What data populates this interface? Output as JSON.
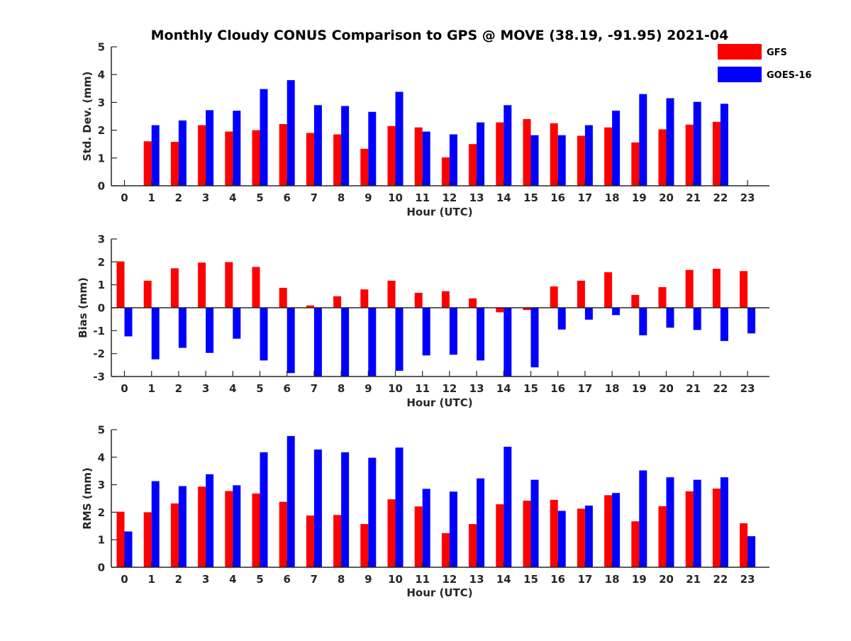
{
  "title": "Monthly Cloudy CONUS Comparison to GPS @ MOVE (38.19, -91.95) 2021-04",
  "legend": [
    {
      "name": "GFS",
      "color": "#ff0000"
    },
    {
      "name": "GOES-16",
      "color": "#0000ff"
    }
  ],
  "chart_data": [
    {
      "type": "bar",
      "xlabel": "Hour (UTC)",
      "ylabel": "Std. Dev. (mm)",
      "ylim": [
        0,
        5
      ],
      "yticks": [
        0,
        1,
        2,
        3,
        4,
        5
      ],
      "categories": [
        "0",
        "1",
        "2",
        "3",
        "4",
        "5",
        "6",
        "7",
        "8",
        "9",
        "10",
        "11",
        "12",
        "13",
        "14",
        "15",
        "16",
        "17",
        "18",
        "19",
        "20",
        "21",
        "22",
        "23"
      ],
      "series": [
        {
          "name": "GFS",
          "color": "#ff0000",
          "values": [
            0,
            1.6,
            1.58,
            2.18,
            1.95,
            2.0,
            2.22,
            1.9,
            1.85,
            1.33,
            2.15,
            2.1,
            1.02,
            1.5,
            2.28,
            2.4,
            2.25,
            1.8,
            2.1,
            1.56,
            2.03,
            2.2,
            2.3,
            0
          ]
        },
        {
          "name": "GOES-16",
          "color": "#0000ff",
          "values": [
            0,
            2.18,
            2.35,
            2.72,
            2.7,
            3.48,
            3.8,
            2.9,
            2.87,
            2.66,
            3.38,
            1.95,
            1.85,
            2.28,
            2.9,
            1.82,
            1.82,
            2.18,
            2.7,
            3.3,
            3.15,
            3.02,
            2.95,
            0
          ]
        }
      ]
    },
    {
      "type": "bar",
      "xlabel": "Hour (UTC)",
      "ylabel": "Bias (mm)",
      "ylim": [
        -3,
        3
      ],
      "yticks": [
        -3,
        -2,
        -1,
        0,
        1,
        2,
        3
      ],
      "categories": [
        "0",
        "1",
        "2",
        "3",
        "4",
        "5",
        "6",
        "7",
        "8",
        "9",
        "10",
        "11",
        "12",
        "13",
        "14",
        "15",
        "16",
        "17",
        "18",
        "19",
        "20",
        "21",
        "22",
        "23"
      ],
      "series": [
        {
          "name": "GFS",
          "color": "#ff0000",
          "values": [
            2.02,
            1.18,
            1.72,
            1.97,
            1.99,
            1.78,
            0.87,
            0.1,
            0.5,
            0.8,
            1.18,
            0.65,
            0.72,
            0.41,
            -0.2,
            -0.1,
            0.93,
            1.18,
            1.55,
            0.56,
            0.9,
            1.65,
            1.7,
            1.6
          ]
        },
        {
          "name": "GOES-16",
          "color": "#0000ff",
          "values": [
            -1.25,
            -2.25,
            -1.75,
            -1.97,
            -1.35,
            -2.3,
            -2.85,
            -3.0,
            -3.0,
            -2.98,
            -2.75,
            -2.08,
            -2.05,
            -2.3,
            -3.0,
            -2.6,
            -0.95,
            -0.52,
            -0.32,
            -1.2,
            -0.87,
            -0.97,
            -1.45,
            -1.12
          ]
        }
      ]
    },
    {
      "type": "bar",
      "xlabel": "Hour (UTC)",
      "ylabel": "RMS (mm)",
      "ylim": [
        0,
        5
      ],
      "yticks": [
        0,
        1,
        2,
        3,
        4,
        5
      ],
      "categories": [
        "0",
        "1",
        "2",
        "3",
        "4",
        "5",
        "6",
        "7",
        "8",
        "9",
        "10",
        "11",
        "12",
        "13",
        "14",
        "15",
        "16",
        "17",
        "18",
        "19",
        "20",
        "21",
        "22",
        "23"
      ],
      "series": [
        {
          "name": "GFS",
          "color": "#ff0000",
          "values": [
            2.02,
            2.0,
            2.32,
            2.93,
            2.77,
            2.68,
            2.38,
            1.88,
            1.9,
            1.57,
            2.47,
            2.21,
            1.24,
            1.57,
            2.29,
            2.42,
            2.45,
            2.13,
            2.62,
            1.67,
            2.22,
            2.76,
            2.86,
            1.6
          ]
        },
        {
          "name": "GOES-16",
          "color": "#0000ff",
          "values": [
            1.3,
            3.13,
            2.95,
            3.38,
            2.98,
            4.18,
            4.77,
            4.28,
            4.18,
            3.98,
            4.35,
            2.85,
            2.75,
            3.23,
            4.38,
            3.18,
            2.05,
            2.24,
            2.7,
            3.52,
            3.27,
            3.18,
            3.27,
            1.13
          ]
        }
      ]
    }
  ]
}
